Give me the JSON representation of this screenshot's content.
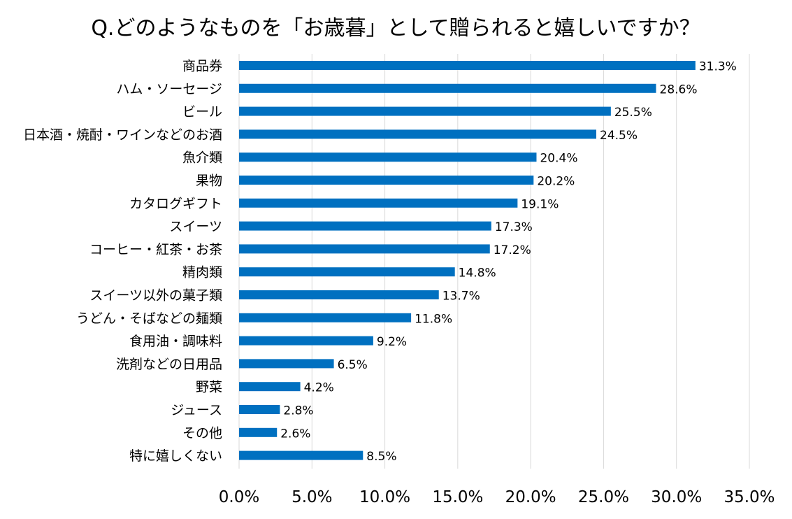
{
  "chart_data": {
    "type": "bar",
    "orientation": "horizontal",
    "title": "Q.どのようなものを「お歳暮」として贈られると嬉しいですか？",
    "categories": [
      "商品券",
      "ハム・ソーセージ",
      "ビール",
      "日本酒・焼酎・ワインなどのお酒",
      "魚介類",
      "果物",
      "カタログギフト",
      "スイーツ",
      "コーヒー・紅茶・お茶",
      "精肉類",
      "スイーツ以外の菓子類",
      "うどん・そばなどの麺類",
      "食用油・調味料",
      "洗剤などの日用品",
      "野菜",
      "ジュース",
      "その他",
      "特に嬉しくない"
    ],
    "values": [
      31.3,
      28.6,
      25.5,
      24.5,
      20.4,
      20.2,
      19.1,
      17.3,
      17.2,
      14.8,
      13.7,
      11.8,
      9.2,
      6.5,
      4.2,
      2.8,
      2.6,
      8.5
    ],
    "data_labels": [
      "31.3%",
      "28.6%",
      "25.5%",
      "24.5%",
      "20.4%",
      "20.2%",
      "19.1%",
      "17.3%",
      "17.2%",
      "14.8%",
      "13.7%",
      "11.8%",
      "9.2%",
      "6.5%",
      "4.2%",
      "2.8%",
      "2.6%",
      "8.5%"
    ],
    "xlim": [
      0,
      35
    ],
    "x_ticks": [
      0,
      5,
      10,
      15,
      20,
      25,
      30,
      35
    ],
    "x_tick_labels": [
      "0.0%",
      "5.0%",
      "10.0%",
      "15.0%",
      "20.0%",
      "25.0%",
      "30.0%",
      "35.0%"
    ],
    "xlabel": "",
    "ylabel": "",
    "grid": "vertical",
    "legend": "none",
    "bar_color": "#0070c0",
    "grid_color": "#d9d9d9"
  }
}
